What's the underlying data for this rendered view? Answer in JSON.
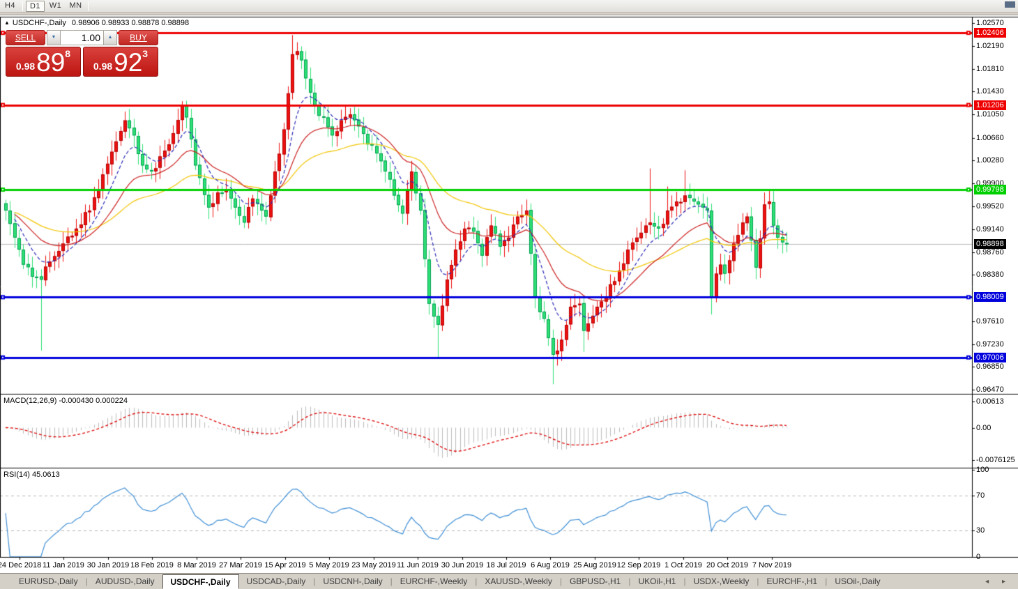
{
  "toolbar": {
    "buttons": [
      {
        "label": "H4",
        "active": false
      },
      {
        "label": "D1",
        "active": true
      },
      {
        "label": "W1",
        "active": false
      },
      {
        "label": "MN",
        "active": false
      }
    ]
  },
  "chart_header": {
    "collapse_icon": "▲",
    "title": "USDCHF-,Daily",
    "ohlc_text": "0.98906 0.98933 0.98878 0.98898"
  },
  "trade_panel": {
    "sell_label": "SELL",
    "buy_label": "BUY",
    "volume": "1.00",
    "spinner_down": "▼",
    "spinner_up": "▲",
    "bid": {
      "prefix": "0.98",
      "big": "89",
      "sup": "8"
    },
    "ask": {
      "prefix": "0.98",
      "big": "92",
      "sup": "3"
    }
  },
  "price_axis": {
    "ticks": [
      "1.02570",
      "1.02190",
      "1.01810",
      "1.01430",
      "1.01050",
      "1.00660",
      "1.00280",
      "0.99900",
      "0.99520",
      "0.99140",
      "0.98760",
      "0.98380",
      "0.97610",
      "0.97230",
      "0.96850",
      "0.96470"
    ]
  },
  "indicators": {
    "macd": {
      "label": "MACD(12,26,9) -0.000430 0.000224",
      "axis_labels": [
        "0.00613",
        "0.00",
        "-0.0076125"
      ]
    },
    "rsi": {
      "label": "RSI(14) 45.0613",
      "axis_labels": [
        "100",
        "70",
        "30",
        "0"
      ]
    }
  },
  "dates": [
    "24 Dec 2018",
    "11 Jan 2019",
    "30 Jan 2019",
    "18 Feb 2019",
    "8 Mar 2019",
    "27 Mar 2019",
    "15 Apr 2019",
    "5 May 2019",
    "23 May 2019",
    "11 Jun 2019",
    "30 Jun 2019",
    "18 Jul 2019",
    "6 Aug 2019",
    "25 Aug 2019",
    "12 Sep 2019",
    "1 Oct 2019",
    "20 Oct 2019",
    "7 Nov 2019"
  ],
  "tabs": {
    "items": [
      "EURUSD-,Daily",
      "AUDUSD-,Daily",
      "USDCHF-,Daily",
      "USDCAD-,Daily",
      "USDCNH-,Daily",
      "EURCHF-,Weekly",
      "XAUUSD-,Weekly",
      "GBPUSD-,H1",
      "UKOil-,H1",
      "USDX-,Weekly",
      "EURCHF-,H1",
      "USOil-,Daily"
    ],
    "active": "USDCHF-,Daily",
    "scroll_left": "◂",
    "scroll_right": "▸"
  },
  "chart_data": {
    "type": "candlestick",
    "symbol": "USDCHF-",
    "timeframe": "Daily",
    "ohlc_display": {
      "open": "0.98906",
      "high": "0.98933",
      "low": "0.98878",
      "close": "0.98898"
    },
    "bid": "0.98898",
    "ask": "0.98923",
    "ylim": [
      0.964,
      1.0268
    ],
    "candle_count": 178,
    "close_waypoints": [
      [
        0,
        0.9945
      ],
      [
        2,
        0.99
      ],
      [
        4,
        0.9855
      ],
      [
        6,
        0.9835
      ],
      [
        8,
        0.983
      ],
      [
        10,
        0.986
      ],
      [
        13,
        0.989
      ],
      [
        16,
        0.9915
      ],
      [
        19,
        0.9945
      ],
      [
        22,
        1.0005
      ],
      [
        25,
        1.006
      ],
      [
        27,
        1.0095
      ],
      [
        29,
        1.007
      ],
      [
        31,
        1.002
      ],
      [
        33,
        1.001
      ],
      [
        35,
        1.0035
      ],
      [
        37,
        1.0055
      ],
      [
        40,
        1.012
      ],
      [
        41,
        1.01
      ],
      [
        43,
        1.002
      ],
      [
        46,
        0.995
      ],
      [
        48,
        0.9975
      ],
      [
        50,
        0.998
      ],
      [
        52,
        0.995
      ],
      [
        54,
        0.9925
      ],
      [
        56,
        0.9965
      ],
      [
        58,
        0.9945
      ],
      [
        59,
        0.9935
      ],
      [
        61,
        1.001
      ],
      [
        63,
        1.008
      ],
      [
        64,
        1.014
      ],
      [
        65,
        1.0205
      ],
      [
        66,
        1.021
      ],
      [
        67,
        1.0195
      ],
      [
        68,
        1.0165
      ],
      [
        70,
        1.012
      ],
      [
        72,
        1.01
      ],
      [
        74,
        1.007
      ],
      [
        76,
        1.0095
      ],
      [
        78,
        1.0105
      ],
      [
        80,
        1.0085
      ],
      [
        82,
        1.0055
      ],
      [
        84,
        1.004
      ],
      [
        86,
        1.001
      ],
      [
        88,
        0.997
      ],
      [
        90,
        0.994
      ],
      [
        92,
        1.001
      ],
      [
        94,
        0.9945
      ],
      [
        96,
        0.979
      ],
      [
        98,
        0.9755
      ],
      [
        100,
        0.983
      ],
      [
        102,
        0.988
      ],
      [
        104,
        0.9915
      ],
      [
        106,
        0.991
      ],
      [
        108,
        0.987
      ],
      [
        110,
        0.992
      ],
      [
        112,
        0.9885
      ],
      [
        114,
        0.99
      ],
      [
        116,
        0.9935
      ],
      [
        118,
        0.9945
      ],
      [
        120,
        0.98
      ],
      [
        122,
        0.9765
      ],
      [
        124,
        0.9705
      ],
      [
        126,
        0.973
      ],
      [
        128,
        0.9785
      ],
      [
        130,
        0.979
      ],
      [
        131,
        0.9745
      ],
      [
        133,
        0.977
      ],
      [
        134,
        0.9785
      ],
      [
        136,
        0.98
      ],
      [
        139,
        0.9845
      ],
      [
        141,
        0.988
      ],
      [
        143,
        0.99
      ],
      [
        145,
        0.992
      ],
      [
        146,
        0.9925
      ],
      [
        148,
        0.9915
      ],
      [
        150,
        0.9945
      ],
      [
        152,
        0.996
      ],
      [
        154,
        0.997
      ],
      [
        156,
        0.996
      ],
      [
        158,
        0.995
      ],
      [
        159,
        0.9945
      ],
      [
        160,
        0.98
      ],
      [
        161,
        0.984
      ],
      [
        162,
        0.9855
      ],
      [
        163,
        0.984
      ],
      [
        165,
        0.989
      ],
      [
        167,
        0.9925
      ],
      [
        168,
        0.9935
      ],
      [
        170,
        0.985
      ],
      [
        172,
        0.9955
      ],
      [
        173,
        0.996
      ],
      [
        174,
        0.992
      ],
      [
        175,
        0.99
      ],
      [
        176,
        0.9892
      ],
      [
        177,
        0.98898
      ]
    ],
    "wick_overrides": {
      "8": {
        "low": 0.9712
      },
      "40": {
        "high": 1.0127
      },
      "65": {
        "high": 1.0237
      },
      "66": {
        "high": 1.0225
      },
      "98": {
        "low": 0.9698
      },
      "124": {
        "low": 0.9656
      },
      "131": {
        "low": 0.971
      },
      "146": {
        "high": 1.0015
      },
      "150": {
        "high": 0.9985
      },
      "154": {
        "high": 1.0012
      },
      "160": {
        "low": 0.9772
      },
      "172": {
        "high": 0.9975
      }
    },
    "horizontal_lines": [
      {
        "price": 1.02406,
        "label": "1.02406",
        "color": "#ee0000"
      },
      {
        "price": 1.01206,
        "label": "1.01206",
        "color": "#ee0000"
      },
      {
        "price": 0.99798,
        "label": "0.99798",
        "color": "#00cf00"
      },
      {
        "price": 0.98009,
        "label": "0.98009",
        "color": "#0000dd"
      },
      {
        "price": 0.97006,
        "label": "0.97006",
        "color": "#0000dd"
      }
    ],
    "current_price_line": {
      "price": 0.98898,
      "label": "0.98898",
      "line_color": "#b8b8b8",
      "label_bg": "#000000"
    },
    "moving_averages": [
      {
        "period": 45,
        "color": "#f2c500",
        "dashed": false
      },
      {
        "period": 20,
        "color": "#cc1f1f",
        "dashed": false
      },
      {
        "period": 8,
        "color": "#2a2ab8",
        "dashed": true
      }
    ],
    "candle_colors": {
      "up_fill": "#ee1111",
      "up_border": "#b50000",
      "down_fill": "#2fe175",
      "down_border": "#00a050"
    },
    "macd": {
      "fast": 12,
      "slow": 26,
      "signal": 9,
      "hist_color": "#bdbdbd",
      "signal_color": "#dd0000",
      "axis_top": 0.00613,
      "axis_bottom": -0.0076125
    },
    "rsi": {
      "period": 14,
      "color": "#3f8fd6",
      "levels": [
        70,
        30
      ],
      "range": [
        0,
        100
      ]
    }
  }
}
